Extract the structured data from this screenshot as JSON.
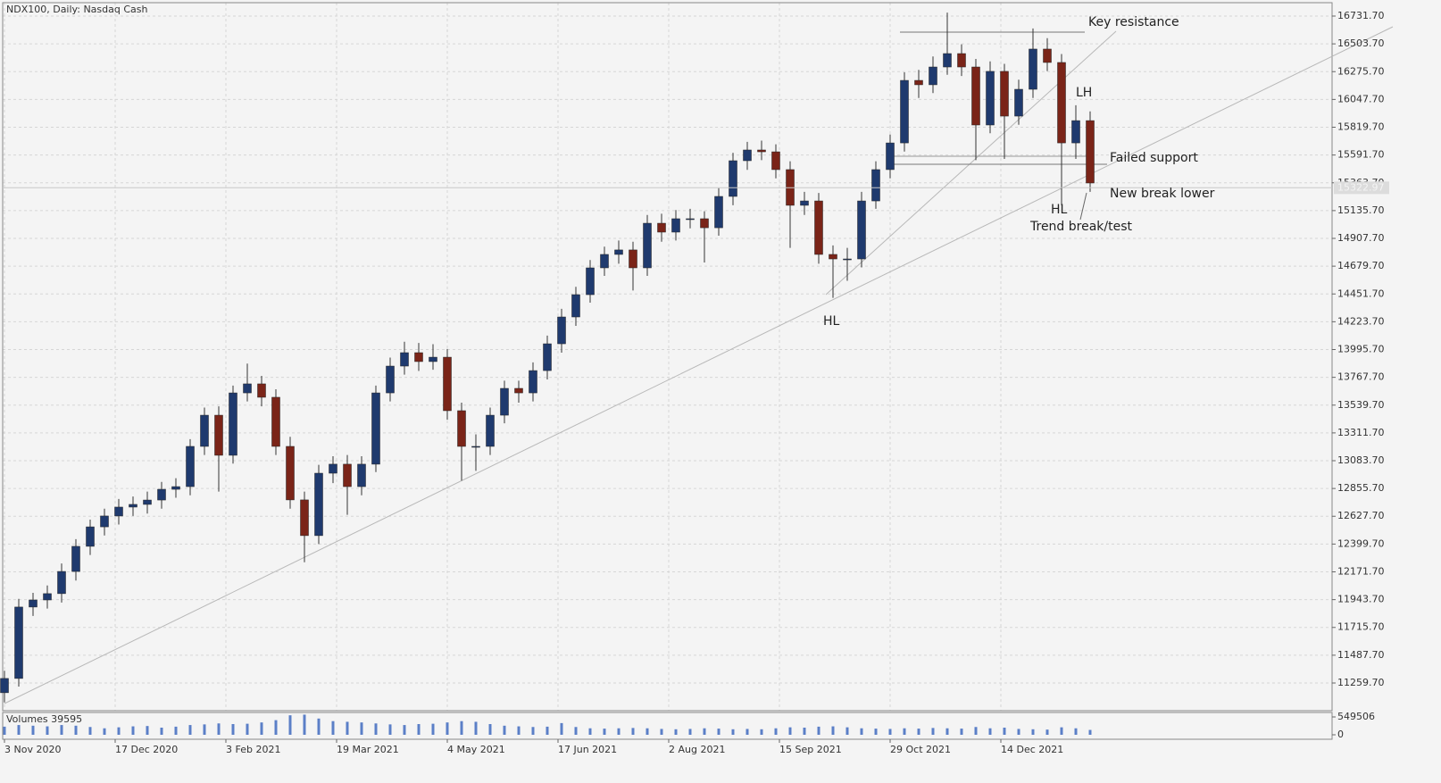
{
  "chart_data": {
    "type": "candlestick",
    "title": "NDX100, Daily:  Nasdaq Cash",
    "x": [
      0,
      4,
      8,
      12,
      16,
      20,
      24,
      28,
      32,
      36,
      40,
      44,
      48,
      52,
      56,
      60,
      64,
      68,
      72,
      76,
      80,
      84,
      88,
      92,
      96,
      100,
      104,
      108,
      112,
      116,
      120,
      124,
      128,
      132,
      136,
      140,
      144,
      148,
      152,
      156,
      160,
      164,
      168,
      172,
      176,
      180,
      184,
      188,
      192,
      196,
      200,
      204,
      208,
      212,
      216,
      220,
      224,
      228,
      232,
      236,
      240,
      244,
      248,
      252,
      256,
      260,
      264,
      268,
      272,
      276,
      280,
      284,
      288,
      292,
      296,
      300,
      304
    ],
    "open": [
      11180,
      11297,
      11883,
      11941,
      11993,
      12175,
      12381,
      12541,
      12630,
      12703,
      12725,
      12761,
      12849,
      12871,
      13201,
      13457,
      13128,
      13640,
      13714,
      13604,
      13201,
      12762,
      12469,
      12981,
      13055,
      12871,
      13055,
      13640,
      13860,
      13970,
      13897,
      13933,
      13494,
      13201,
      13201,
      13457,
      13677,
      13640,
      13823,
      14043,
      14263,
      14446,
      14666,
      14776,
      14813,
      14666,
      15032,
      14959,
      15069,
      15069,
      14995,
      15252,
      15545,
      15633,
      15618,
      15472,
      15179,
      15215,
      14776,
      14739,
      14739,
      15215,
      15472,
      15691,
      16204,
      16168,
      16314,
      16424,
      16314,
      15838,
      16278,
      15911,
      16131,
      16461,
      16351,
      15691,
      15874
    ],
    "high": [
      11360,
      11950,
      12000,
      12060,
      12240,
      12440,
      12600,
      12690,
      12770,
      12790,
      12830,
      12910,
      12940,
      13260,
      13520,
      13530,
      13700,
      13880,
      13780,
      13670,
      13280,
      12830,
      13050,
      13120,
      13130,
      13120,
      13700,
      13930,
      14060,
      14050,
      14040,
      14000,
      13560,
      13300,
      13520,
      13740,
      13740,
      13890,
      14110,
      14330,
      14510,
      14730,
      14840,
      14890,
      14880,
      15100,
      15110,
      15140,
      15150,
      15130,
      15320,
      15610,
      15700,
      15710,
      15680,
      15540,
      15290,
      15280,
      14850,
      14830,
      15290,
      15540,
      15760,
      16270,
      16290,
      16400,
      16760,
      16500,
      16380,
      16360,
      16340,
      16210,
      16630,
      16550,
      16420,
      16000,
      15950
    ],
    "low": [
      11100,
      11230,
      11810,
      11870,
      11920,
      12100,
      12310,
      12470,
      12560,
      12630,
      12650,
      12690,
      12780,
      12800,
      13130,
      12830,
      13060,
      13570,
      13530,
      13130,
      12690,
      12250,
      12400,
      12900,
      12640,
      12800,
      12990,
      13570,
      13790,
      13820,
      13830,
      13420,
      12920,
      13000,
      13130,
      13390,
      13560,
      13570,
      13750,
      13970,
      14190,
      14380,
      14600,
      14700,
      14480,
      14600,
      14880,
      14890,
      14990,
      14710,
      14930,
      15180,
      15470,
      15550,
      15400,
      14830,
      15100,
      14700,
      14420,
      14560,
      14670,
      15150,
      15400,
      15620,
      16060,
      16100,
      16250,
      16240,
      15550,
      15770,
      15560,
      15840,
      16060,
      16280,
      15180,
      15560,
      15290
    ],
    "close": [
      11297,
      11883,
      11941,
      11993,
      12175,
      12381,
      12541,
      12630,
      12703,
      12725,
      12761,
      12849,
      12871,
      13201,
      13457,
      13128,
      13640,
      13714,
      13604,
      13201,
      12762,
      12469,
      12981,
      13055,
      12871,
      13055,
      13640,
      13860,
      13970,
      13897,
      13933,
      13494,
      13201,
      13201,
      13457,
      13677,
      13640,
      13823,
      14043,
      14263,
      14446,
      14666,
      14776,
      14813,
      14666,
      15032,
      14959,
      15069,
      15069,
      14995,
      15252,
      15545,
      15633,
      15618,
      15472,
      15179,
      15215,
      14776,
      14739,
      14739,
      15215,
      15472,
      15691,
      16204,
      16168,
      16314,
      16424,
      16314,
      15838,
      16278,
      15911,
      16131,
      16461,
      16351,
      15691,
      15874,
      15362
    ],
    "bull_color": "#1f3a6e",
    "bear_color": "#7a2418",
    "xlim": [
      -0.5,
      371.75
    ],
    "xticks": [
      {
        "value": 0,
        "label": "3 Nov 2020"
      },
      {
        "value": 31,
        "label": "17 Dec 2020"
      },
      {
        "value": 62,
        "label": "3 Feb 2021"
      },
      {
        "value": 93,
        "label": "19 Mar 2021"
      },
      {
        "value": 124,
        "label": "4 May 2021"
      },
      {
        "value": 155,
        "label": "17 Jun 2021"
      },
      {
        "value": 186,
        "label": "2 Aug 2021"
      },
      {
        "value": 217,
        "label": "15 Sep 2021"
      },
      {
        "value": 248,
        "label": "29 Oct 2021"
      },
      {
        "value": 279,
        "label": "14 Dec 2021"
      }
    ],
    "ylim": [
      11032.6,
      16841.6
    ],
    "yticks": [
      {
        "value": 11259.7,
        "label": "11259.70"
      },
      {
        "value": 11487.7,
        "label": "11487.70"
      },
      {
        "value": 11715.7,
        "label": "11715.70"
      },
      {
        "value": 11943.7,
        "label": "11943.70"
      },
      {
        "value": 12171.7,
        "label": "12171.70"
      },
      {
        "value": 12399.7,
        "label": "12399.70"
      },
      {
        "value": 12627.7,
        "label": "12627.70"
      },
      {
        "value": 12855.7,
        "label": "12855.70"
      },
      {
        "value": 13083.7,
        "label": "13083.70"
      },
      {
        "value": 13311.7,
        "label": "13311.70"
      },
      {
        "value": 13539.7,
        "label": "13539.70"
      },
      {
        "value": 13767.7,
        "label": "13767.70"
      },
      {
        "value": 13995.7,
        "label": "13995.70"
      },
      {
        "value": 14223.7,
        "label": "14223.70"
      },
      {
        "value": 14451.7,
        "label": "14451.70"
      },
      {
        "value": 14679.7,
        "label": "14679.70"
      },
      {
        "value": 14907.7,
        "label": "14907.70"
      },
      {
        "value": 15135.7,
        "label": "15135.70"
      },
      {
        "value": 15363.7,
        "label": "15363.70"
      },
      {
        "value": 15591.7,
        "label": "15591.70"
      },
      {
        "value": 15819.7,
        "label": "15819.70"
      },
      {
        "value": 16047.7,
        "label": "16047.70"
      },
      {
        "value": 16275.7,
        "label": "16275.70"
      },
      {
        "value": 16503.7,
        "label": "16503.70"
      },
      {
        "value": 16731.7,
        "label": "16731.70"
      }
    ],
    "grid": true,
    "current_price": {
      "value": 15322.97,
      "label": "15322.97"
    },
    "annotations": [
      "Key resistance",
      "LH",
      "Failed support",
      "New break lower",
      "HL",
      "Trend break/test",
      "HL"
    ],
    "volume": {
      "title": "Volumes 39595",
      "color": "#5b7fc7",
      "ylim": [
        0,
        687000
      ],
      "yticks": [
        549506,
        0
      ],
      "values": [
        250000,
        300000,
        280000,
        260000,
        300000,
        280000,
        240000,
        200000,
        230000,
        260000,
        270000,
        220000,
        250000,
        300000,
        320000,
        350000,
        330000,
        340000,
        380000,
        450000,
        600000,
        620000,
        500000,
        420000,
        400000,
        380000,
        350000,
        320000,
        300000,
        330000,
        340000,
        380000,
        420000,
        400000,
        330000,
        280000,
        260000,
        240000,
        250000,
        360000,
        240000,
        200000,
        190000,
        200000,
        210000,
        200000,
        180000,
        170000,
        180000,
        200000,
        190000,
        170000,
        180000,
        170000,
        200000,
        230000,
        220000,
        250000,
        260000,
        230000,
        200000,
        190000,
        180000,
        200000,
        190000,
        210000,
        200000,
        190000,
        240000,
        200000,
        220000,
        180000,
        170000,
        160000,
        230000,
        200000,
        150000
      ]
    }
  }
}
